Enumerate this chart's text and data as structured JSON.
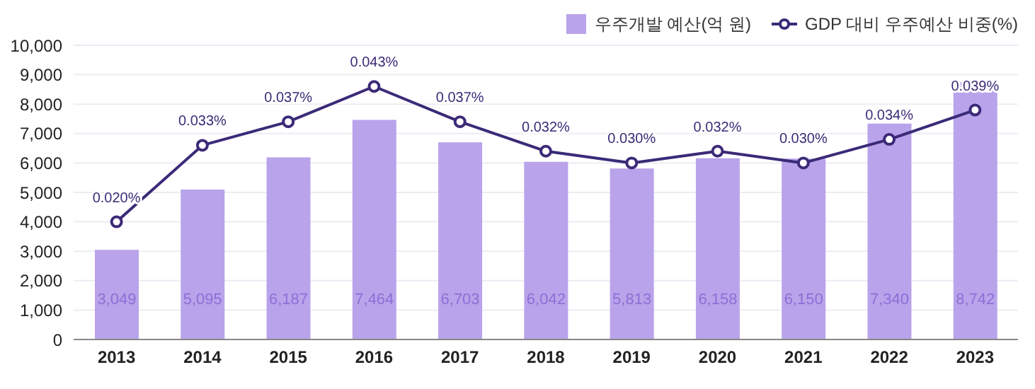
{
  "chart_data": {
    "type": "bar",
    "categories": [
      "2013",
      "2014",
      "2015",
      "2016",
      "2017",
      "2018",
      "2019",
      "2020",
      "2021",
      "2022",
      "2023"
    ],
    "series": [
      {
        "name": "우주개발 예산(억 원)",
        "color": "#b9a3ea",
        "values": [
          3049,
          5095,
          6187,
          7464,
          6703,
          6042,
          5813,
          6158,
          6150,
          7340,
          8742
        ],
        "value_labels": [
          "3,049",
          "5,095",
          "6,187",
          "7,464",
          "6,703",
          "6,042",
          "5,813",
          "6,158",
          "6,150",
          "7,340",
          "8,742"
        ]
      },
      {
        "name": "GDP 대비 우주예산 비중(%)",
        "type": "line",
        "axis": "y2",
        "color": "#3b2a78",
        "values": [
          0.02,
          0.033,
          0.037,
          0.043,
          0.037,
          0.032,
          0.03,
          0.032,
          0.03,
          0.034,
          0.039
        ],
        "value_labels": [
          "0.020%",
          "0.033%",
          "0.037%",
          "0.043%",
          "0.037%",
          "0.032%",
          "0.030%",
          "0.032%",
          "0.030%",
          "0.034%",
          "0.039%"
        ]
      }
    ],
    "ylim": [
      0,
      10000
    ],
    "yticks": [
      {
        "value": 0,
        "label": "0"
      },
      {
        "value": 1000,
        "label": "1,000"
      },
      {
        "value": 2000,
        "label": "2,000"
      },
      {
        "value": 3000,
        "label": "3,000"
      },
      {
        "value": 4000,
        "label": "4,000"
      },
      {
        "value": 5000,
        "label": "5,000"
      },
      {
        "value": 6000,
        "label": "6,000"
      },
      {
        "value": 7000,
        "label": "7,000"
      },
      {
        "value": 8000,
        "label": "8,000"
      },
      {
        "value": 9000,
        "label": "9,000"
      },
      {
        "value": 10000,
        "label": "10,000"
      }
    ],
    "y2lim": [
      0,
      0.05
    ],
    "grid": "y",
    "legend": "top right",
    "marker": "circle"
  }
}
